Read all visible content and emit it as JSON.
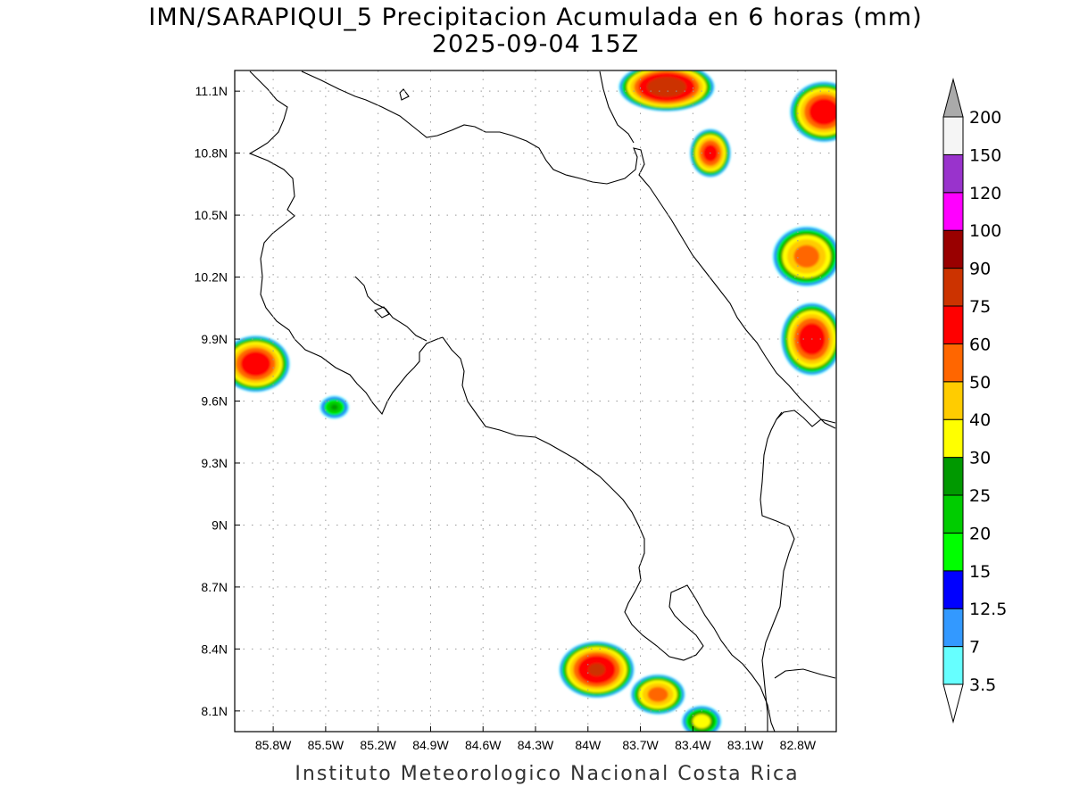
{
  "title_line1": "IMN/SARAPIQUI_5 Precipitacion Acumulada en 6 horas (mm)",
  "title_line2": "2025-09-04 15Z",
  "credit": "Instituto Meteorologico Nacional Costa Rica",
  "map_extent": {
    "lon_min": -86.02,
    "lon_max": -82.58,
    "lat_min": 8.0,
    "lat_max": 11.2
  },
  "lat_ticks": [
    {
      "value": 11.1,
      "label": "11.1N"
    },
    {
      "value": 10.8,
      "label": "10.8N"
    },
    {
      "value": 10.5,
      "label": "10.5N"
    },
    {
      "value": 10.2,
      "label": "10.2N"
    },
    {
      "value": 9.9,
      "label": "9.9N"
    },
    {
      "value": 9.6,
      "label": "9.6N"
    },
    {
      "value": 9.3,
      "label": "9.3N"
    },
    {
      "value": 9.0,
      "label": "9N"
    },
    {
      "value": 8.7,
      "label": "8.7N"
    },
    {
      "value": 8.4,
      "label": "8.4N"
    },
    {
      "value": 8.1,
      "label": "8.1N"
    }
  ],
  "lon_ticks": [
    {
      "value": -85.8,
      "label": "85.8W"
    },
    {
      "value": -85.5,
      "label": "85.5W"
    },
    {
      "value": -85.2,
      "label": "85.2W"
    },
    {
      "value": -84.9,
      "label": "84.9W"
    },
    {
      "value": -84.6,
      "label": "84.6W"
    },
    {
      "value": -84.3,
      "label": "84.3W"
    },
    {
      "value": -84.0,
      "label": "84W"
    },
    {
      "value": -83.7,
      "label": "83.7W"
    },
    {
      "value": -83.4,
      "label": "83.4W"
    },
    {
      "value": -83.1,
      "label": "83.1W"
    },
    {
      "value": -82.8,
      "label": "82.8W"
    }
  ],
  "colorbar": {
    "levels": [
      {
        "label": "3.5",
        "color": "#66ffff"
      },
      {
        "label": "7",
        "color": "#3399ff"
      },
      {
        "label": "12.5",
        "color": "#0000ff"
      },
      {
        "label": "15",
        "color": "#00ff00"
      },
      {
        "label": "20",
        "color": "#00cc00"
      },
      {
        "label": "25",
        "color": "#009900"
      },
      {
        "label": "30",
        "color": "#ffff00"
      },
      {
        "label": "40",
        "color": "#ffcc00"
      },
      {
        "label": "50",
        "color": "#ff6600"
      },
      {
        "label": "60",
        "color": "#ff0000"
      },
      {
        "label": "75",
        "color": "#cc3300"
      },
      {
        "label": "90",
        "color": "#990000"
      },
      {
        "label": "100",
        "color": "#ff00ff"
      },
      {
        "label": "120",
        "color": "#9933cc"
      },
      {
        "label": "150",
        "color": "#f5f5f5"
      },
      {
        "label": "200",
        "color": "#aaaaaa"
      }
    ],
    "under_color": "#ffffff",
    "over_color": "#aaaaaa"
  },
  "precip_cells": [
    {
      "name": "rain-cell-northeast-top",
      "lon": -83.55,
      "lat": 11.12,
      "peak": 85,
      "rlon": 0.28,
      "rlat": 0.12
    },
    {
      "name": "rain-cell-northeast-right",
      "lon": -82.65,
      "lat": 11.0,
      "peak": 70,
      "rlon": 0.2,
      "rlat": 0.15
    },
    {
      "name": "rain-cell-northeast-center",
      "lon": -83.3,
      "lat": 10.8,
      "peak": 65,
      "rlon": 0.12,
      "rlat": 0.12
    },
    {
      "name": "rain-cell-caribbean-east",
      "lon": -82.75,
      "lat": 10.3,
      "peak": 55,
      "rlon": 0.2,
      "rlat": 0.15
    },
    {
      "name": "rain-cell-limon-coast",
      "lon": -82.72,
      "lat": 9.9,
      "peak": 70,
      "rlon": 0.18,
      "rlat": 0.18
    },
    {
      "name": "rain-cell-nicoya-west",
      "lon": -85.9,
      "lat": 9.78,
      "peak": 70,
      "rlon": 0.2,
      "rlat": 0.14
    },
    {
      "name": "rain-cell-nicoya-south",
      "lon": -85.45,
      "lat": 9.57,
      "peak": 25,
      "rlon": 0.09,
      "rlat": 0.06
    },
    {
      "name": "rain-cell-osa-west",
      "lon": -83.95,
      "lat": 8.3,
      "peak": 75,
      "rlon": 0.22,
      "rlat": 0.14
    },
    {
      "name": "rain-cell-osa-east",
      "lon": -83.6,
      "lat": 8.18,
      "peak": 55,
      "rlon": 0.16,
      "rlat": 0.1
    },
    {
      "name": "rain-cell-golfito",
      "lon": -83.35,
      "lat": 8.05,
      "peak": 35,
      "rlon": 0.12,
      "rlat": 0.08
    }
  ]
}
